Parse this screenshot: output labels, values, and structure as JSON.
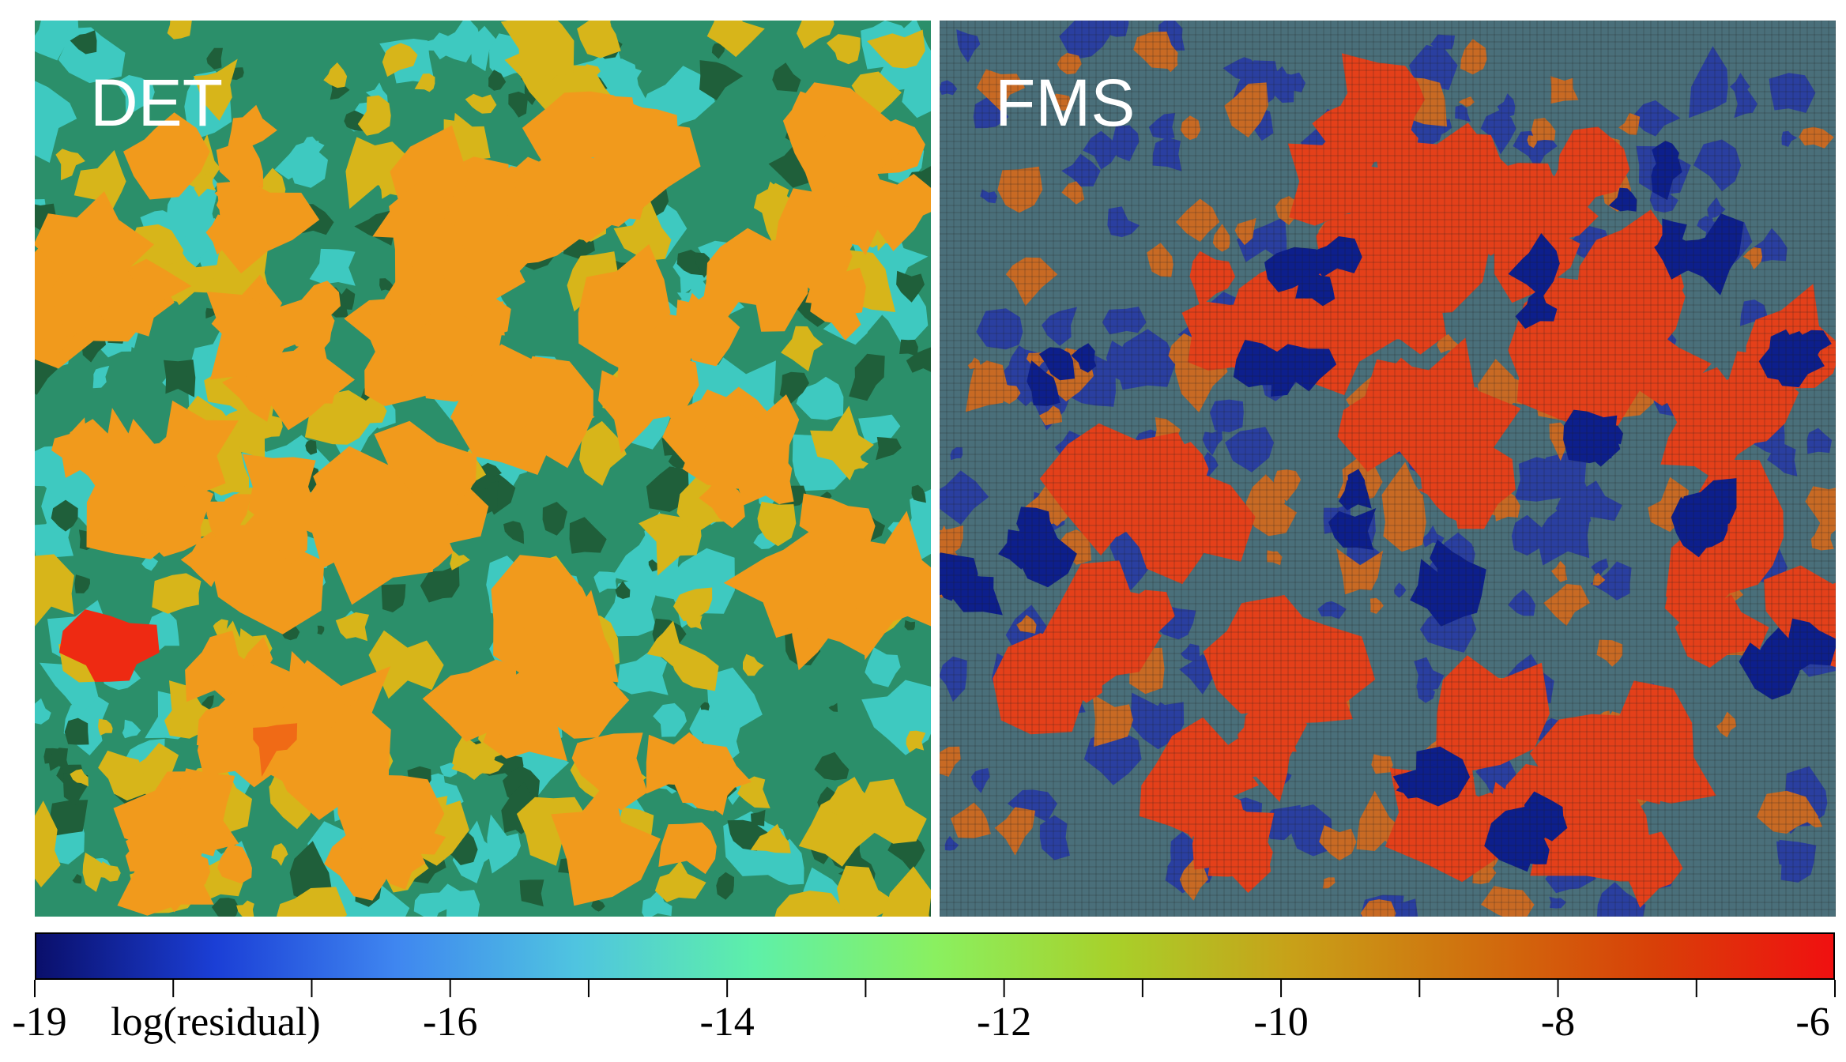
{
  "panels": [
    {
      "label": "DET"
    },
    {
      "label": "FMS"
    }
  ],
  "colorbar": {
    "title": "log(residual)",
    "tick_labels": [
      "-19",
      "-16",
      "-14",
      "-12",
      "-10",
      "-8",
      "-6"
    ],
    "tick_values": [
      -19,
      -16,
      -14,
      -12,
      -10,
      -8,
      -6
    ],
    "range": [
      -19,
      -6
    ],
    "colors": [
      "#0a0f6b",
      "#1b3fd6",
      "#3f86f0",
      "#4fc4e0",
      "#5ef0a8",
      "#8af060",
      "#a8d02a",
      "#c8a018",
      "#d0700e",
      "#d84008",
      "#f01010"
    ]
  },
  "palette": {
    "det_base": "#2b8f6a",
    "det_cyan": "#3ec9c0",
    "det_dark": "#1f5f3a",
    "det_yellow": "#d7b51a",
    "det_orange": "#f19a1c",
    "det_red": "#ee2a12",
    "fms_base": "#4a6f7a",
    "fms_blue": "#0d1f8c",
    "fms_red": "#e4401a",
    "fms_orange": "#c86a24"
  }
}
